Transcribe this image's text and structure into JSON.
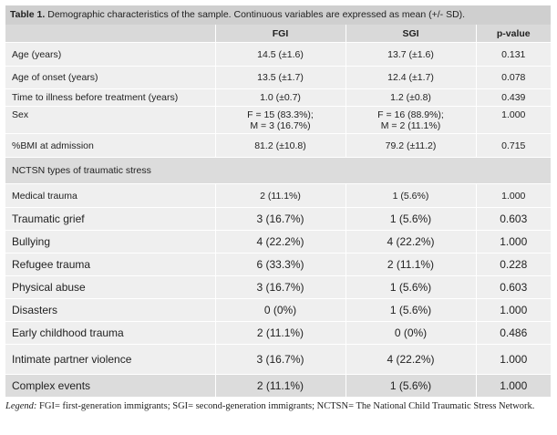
{
  "caption": {
    "label": "Table 1.",
    "text": " Demographic characteristics of the sample. Continuous variables are expressed as mean (+/- SD)."
  },
  "columns": [
    "",
    "FGI",
    "SGI",
    "p-value"
  ],
  "rows": [
    {
      "label": "Age (years)",
      "fgi": "14.5 (±1.6)",
      "sgi": "13.7 (±1.6)",
      "p": "0.131"
    },
    {
      "label": "Age of onset (years)",
      "fgi": "13.5 (±1.7)",
      "sgi": "12.4 (±1.7)",
      "p": "0.078"
    },
    {
      "label": "Time to illness before treatment (years)",
      "fgi": "1.0 (±0.7)",
      "sgi": "1.2 (±0.8)",
      "p": "0.439"
    },
    {
      "label": "Sex",
      "fgi_line1": "F = 15 (83.3%);",
      "fgi_line2": "M = 3 (16.7%)",
      "sgi_line1": "F = 16 (88.9%);",
      "sgi_line2": "M = 2 (11.1%)",
      "p": "1.000"
    },
    {
      "label": "%BMI at admission",
      "fgi": "81.2 (±10.8)",
      "sgi": "79.2 (±11.2)",
      "p": "0.715"
    }
  ],
  "section_label": "NCTSN types of traumatic stress",
  "trauma_rows": [
    {
      "label": "Medical trauma",
      "fgi": "2 (11.1%)",
      "sgi": "1 (5.6%)",
      "p": "1.000"
    },
    {
      "label": "Traumatic grief",
      "fgi": "3 (16.7%)",
      "sgi": "1 (5.6%)",
      "p": "0.603"
    },
    {
      "label": "Bullying",
      "fgi": "4 (22.2%)",
      "sgi": "4 (22.2%)",
      "p": "1.000"
    },
    {
      "label": "Refugee trauma",
      "fgi": "6 (33.3%)",
      "sgi": "2 (11.1%)",
      "p": "0.228"
    },
    {
      "label": "Physical abuse",
      "fgi": "3 (16.7%)",
      "sgi": "1 (5.6%)",
      "p": "0.603"
    },
    {
      "label": "Disasters",
      "fgi": "0 (0%)",
      "sgi": "1 (5.6%)",
      "p": "1.000"
    },
    {
      "label": "Early childhood trauma",
      "fgi": "2 (11.1%)",
      "sgi": "0 (0%)",
      "p": "0.486"
    },
    {
      "label": "Intimate partner violence",
      "fgi": "3 (16.7%)",
      "sgi": "4 (22.2%)",
      "p": "1.000"
    },
    {
      "label": "Complex events",
      "fgi": "2 (11.1%)",
      "sgi": "1 (5.6%)",
      "p": "1.000"
    }
  ],
  "legend": {
    "label": "Legend:",
    "text": " FGI= first-generation immigrants; SGI= second-generation immigrants; NCTSN= The National Child Traumatic Stress Network."
  }
}
